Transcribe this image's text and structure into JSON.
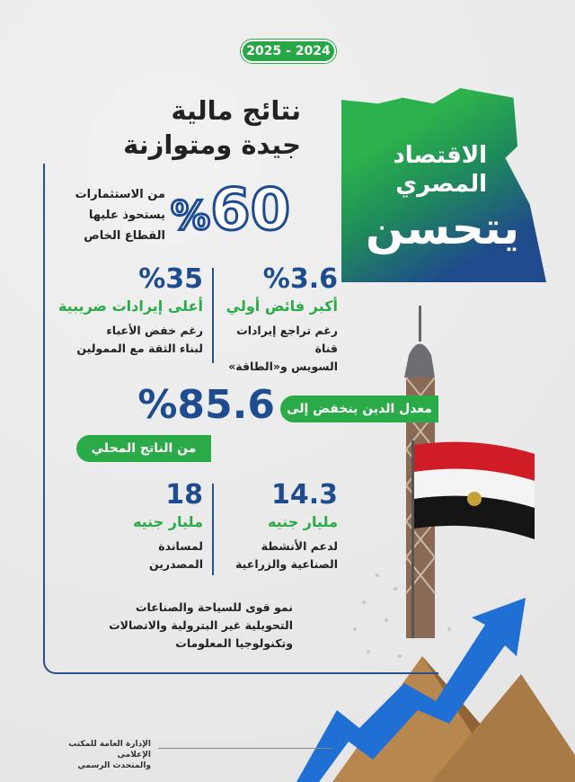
{
  "year_badge": "2025 - 2024",
  "title": {
    "line1": "نتائج مالية",
    "line2": "جيدة ومتوازنة"
  },
  "hero": {
    "line1": "الاقتصاد",
    "line2": "المصري",
    "line3": "يتحسن",
    "gradient_colors": [
      "#2bb24c",
      "#1f4a8c"
    ]
  },
  "stat_investments": {
    "value": "60",
    "unit": "%",
    "lines": [
      "من الاستثمارات",
      "يستحوذ عليها",
      "القطاع الخاص"
    ]
  },
  "stat_surplus": {
    "value": "%3.6",
    "label": "أكبر فائض أولي",
    "lines": [
      "رغم تراجع إيرادات قناة",
      "السويس و«الطاقة»"
    ]
  },
  "stat_tax": {
    "value": "%35",
    "label": "أعلى إيرادات ضريبية",
    "lines": [
      "رغم خفض الأعباء",
      "لبناء الثقة مع الممولين"
    ]
  },
  "stat_debt": {
    "prefix": "معدل الدين ينخفض إلى",
    "value": "%85.6",
    "suffix": "من الناتج المحلي"
  },
  "stat_industry": {
    "value": "14.3",
    "label": "مليار جنيه",
    "lines": [
      "لدعم الأنشطة",
      "الصناعية والزراعية"
    ]
  },
  "stat_exporters": {
    "value": "18",
    "label": "مليار جنيه",
    "lines": [
      "لمساندة",
      "المصدرين"
    ]
  },
  "growth": {
    "lines": [
      "نمو قوى للسياحة والصناعات",
      "التحويلية غير البترولية والاتصالات",
      "وتكنولوجيا المعلومات"
    ]
  },
  "footer": {
    "line1": "الإدارة العامة للمكتب الإعلامى",
    "line2": "والمتحدث الرسمي"
  },
  "colors": {
    "blue": "#1e4c91",
    "green": "#2bab48"
  }
}
